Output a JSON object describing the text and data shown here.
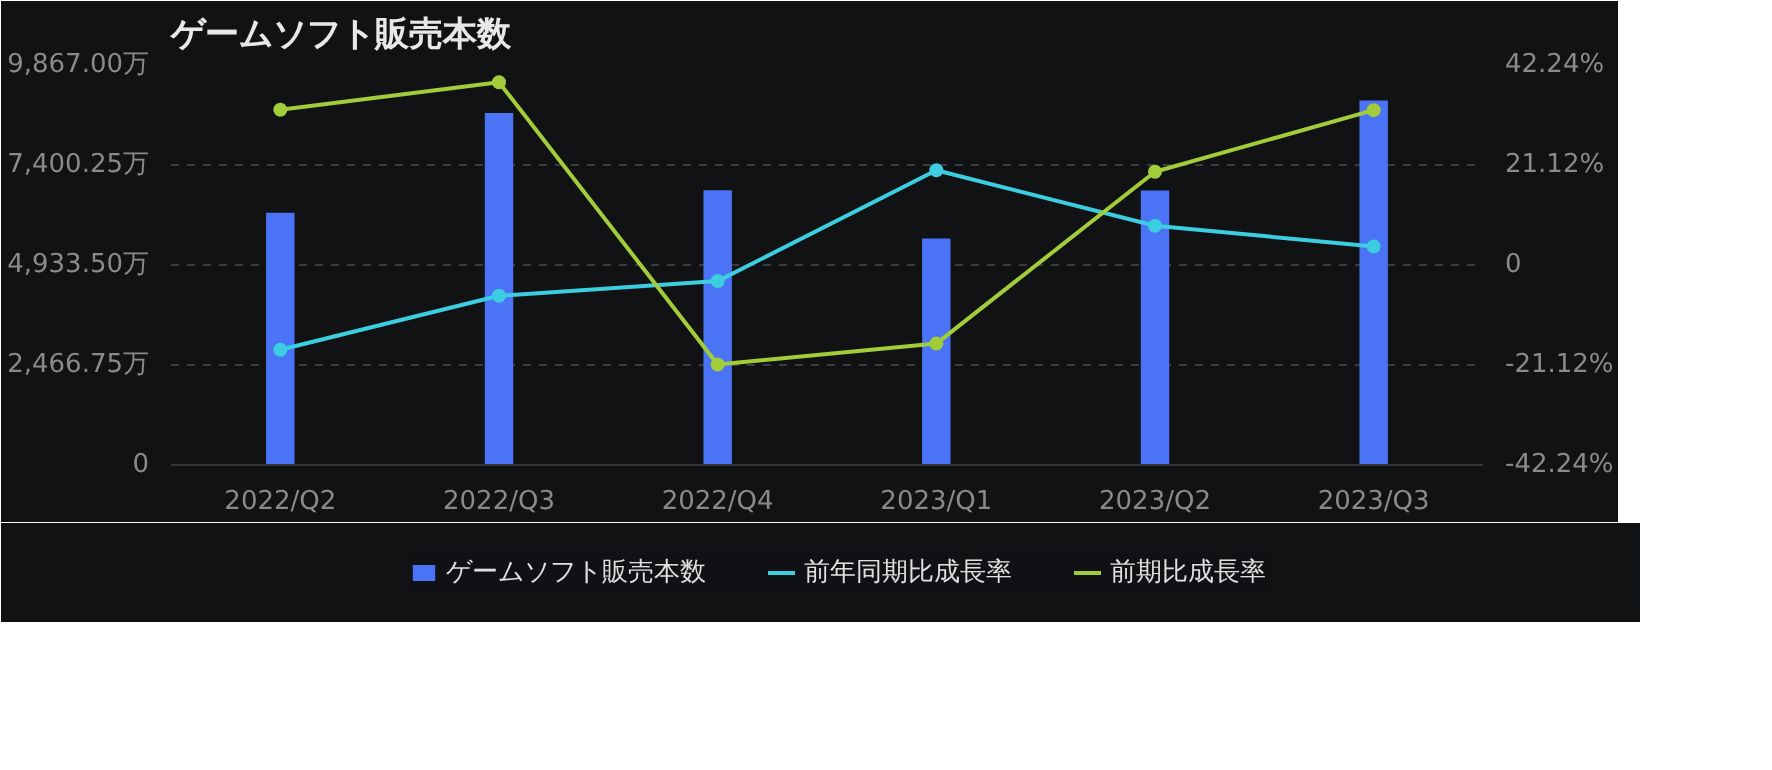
{
  "chart_data": {
    "type": "bar",
    "title": "ゲームソフト販売本数",
    "categories": [
      "2022/Q2",
      "2022/Q3",
      "2022/Q4",
      "2023/Q1",
      "2023/Q2",
      "2023/Q3"
    ],
    "series": [
      {
        "name": "ゲームソフト販売本数",
        "color": "#4a74f5",
        "values": [
          6220,
          8680,
          6780,
          5590,
          6770,
          8990
        ]
      },
      {
        "name": "前年同期比成長率",
        "type": "line",
        "axis": "y2",
        "color": "#3ccde0",
        "values": [
          -17.9,
          -6.5,
          -3.4,
          20.0,
          8.3,
          3.9
        ]
      },
      {
        "name": "前期比成長率",
        "type": "line",
        "axis": "y2",
        "color": "#a3cc3a",
        "values": [
          32.8,
          38.6,
          -21.0,
          -16.6,
          19.7,
          32.7
        ]
      }
    ],
    "ylim": [
      0,
      9867
    ],
    "yticks": [
      {
        "value": 0,
        "label": "0"
      },
      {
        "value": 2466.75,
        "label": "2,466.75万"
      },
      {
        "value": 4933.5,
        "label": "4,933.50万"
      },
      {
        "value": 7400.25,
        "label": "7,400.25万"
      },
      {
        "value": 9867,
        "label": "9,867.00万"
      }
    ],
    "y2lim": [
      -42.24,
      42.24
    ],
    "y2ticks": [
      {
        "value": -42.24,
        "label": "-42.24%"
      },
      {
        "value": -21.12,
        "label": "-21.12%"
      },
      {
        "value": 0,
        "label": "0"
      },
      {
        "value": 21.12,
        "label": "21.12%"
      },
      {
        "value": 42.24,
        "label": "42.24%"
      }
    ],
    "grid": "y",
    "legend": "bottom",
    "marker": "circle",
    "line_style": "solid"
  }
}
